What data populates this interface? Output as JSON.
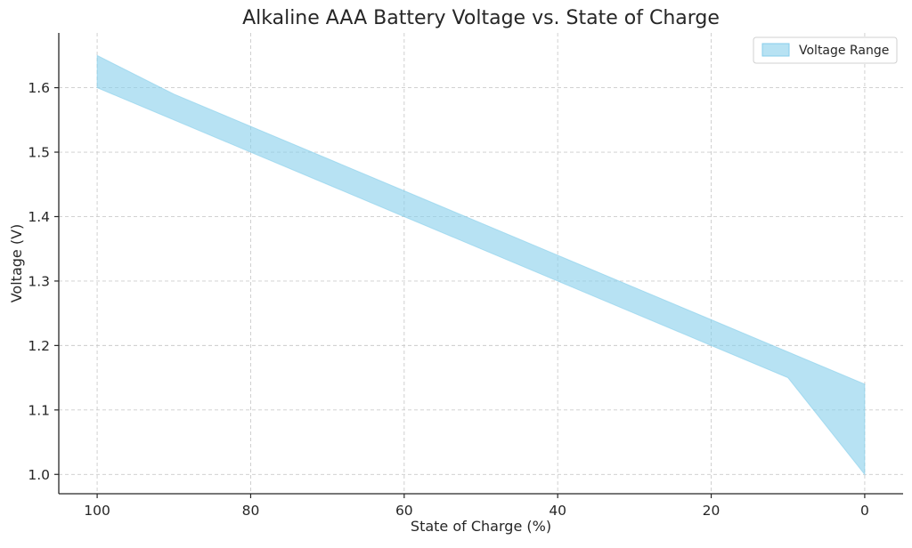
{
  "chart_data": {
    "type": "area",
    "title": "Alkaline AAA Battery Voltage vs. State of Charge",
    "xlabel": "State of Charge (%)",
    "ylabel": "Voltage (V)",
    "xlim": [
      105,
      -5
    ],
    "ylim": [
      0.97,
      1.685
    ],
    "x_inverted": true,
    "grid": true,
    "legend_position": "top-right",
    "x_ticks": [
      100,
      80,
      60,
      40,
      20,
      0
    ],
    "y_ticks": [
      1.0,
      1.1,
      1.2,
      1.3,
      1.4,
      1.5,
      1.6
    ],
    "x_tick_labels": [
      "100",
      "80",
      "60",
      "40",
      "20",
      "0"
    ],
    "y_tick_labels": [
      "1.0",
      "1.1",
      "1.2",
      "1.3",
      "1.4",
      "1.5",
      "1.6"
    ],
    "x": [
      100,
      90,
      80,
      70,
      60,
      50,
      40,
      30,
      20,
      10,
      0
    ],
    "series": [
      {
        "name": "Voltage Range",
        "color": "#87ceeb",
        "alpha": 0.6,
        "lower": [
          1.6,
          1.55,
          1.5,
          1.45,
          1.4,
          1.35,
          1.3,
          1.25,
          1.2,
          1.15,
          1.0
        ],
        "upper": [
          1.65,
          1.59,
          1.54,
          1.49,
          1.44,
          1.39,
          1.34,
          1.29,
          1.24,
          1.19,
          1.14
        ]
      }
    ]
  }
}
